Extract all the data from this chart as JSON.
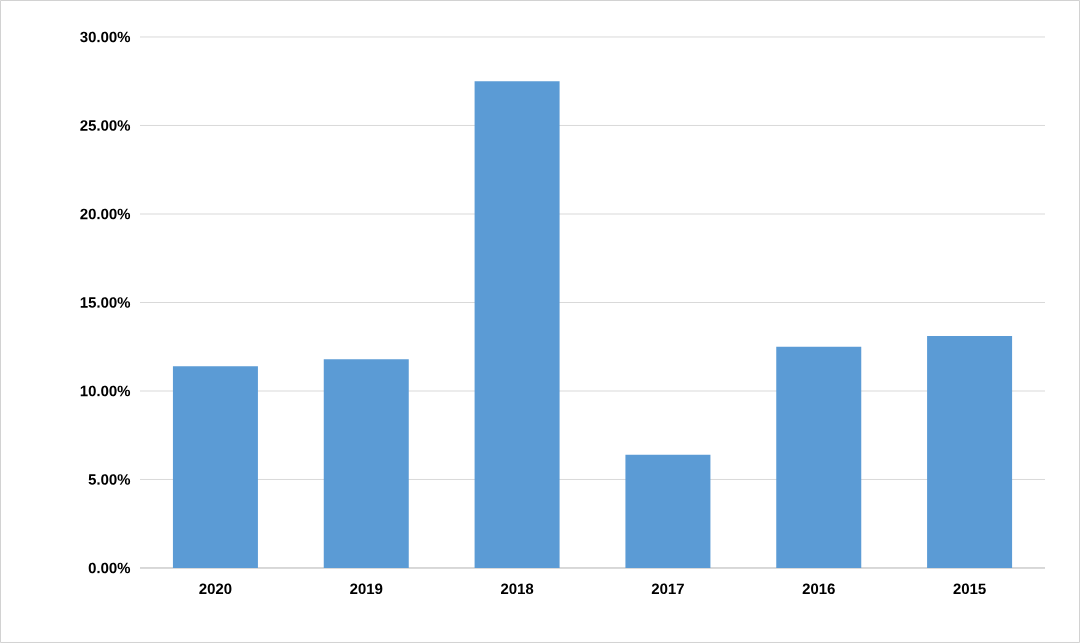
{
  "chart_data": {
    "type": "bar",
    "categories": [
      "2020",
      "2019",
      "2018",
      "2017",
      "2016",
      "2015"
    ],
    "values": [
      11.4,
      11.8,
      27.5,
      6.4,
      12.5,
      13.1
    ],
    "color": "#5b9bd5",
    "ylim": [
      0,
      30
    ],
    "yticks": [
      {
        "value": 0,
        "label": "0.00%"
      },
      {
        "value": 5,
        "label": "5.00%"
      },
      {
        "value": 10,
        "label": "10.00%"
      },
      {
        "value": 15,
        "label": "15.00%"
      },
      {
        "value": 20,
        "label": "20.00%"
      },
      {
        "value": 25,
        "label": "25.00%"
      },
      {
        "value": 30,
        "label": "30.00%"
      }
    ],
    "grid": "y"
  }
}
